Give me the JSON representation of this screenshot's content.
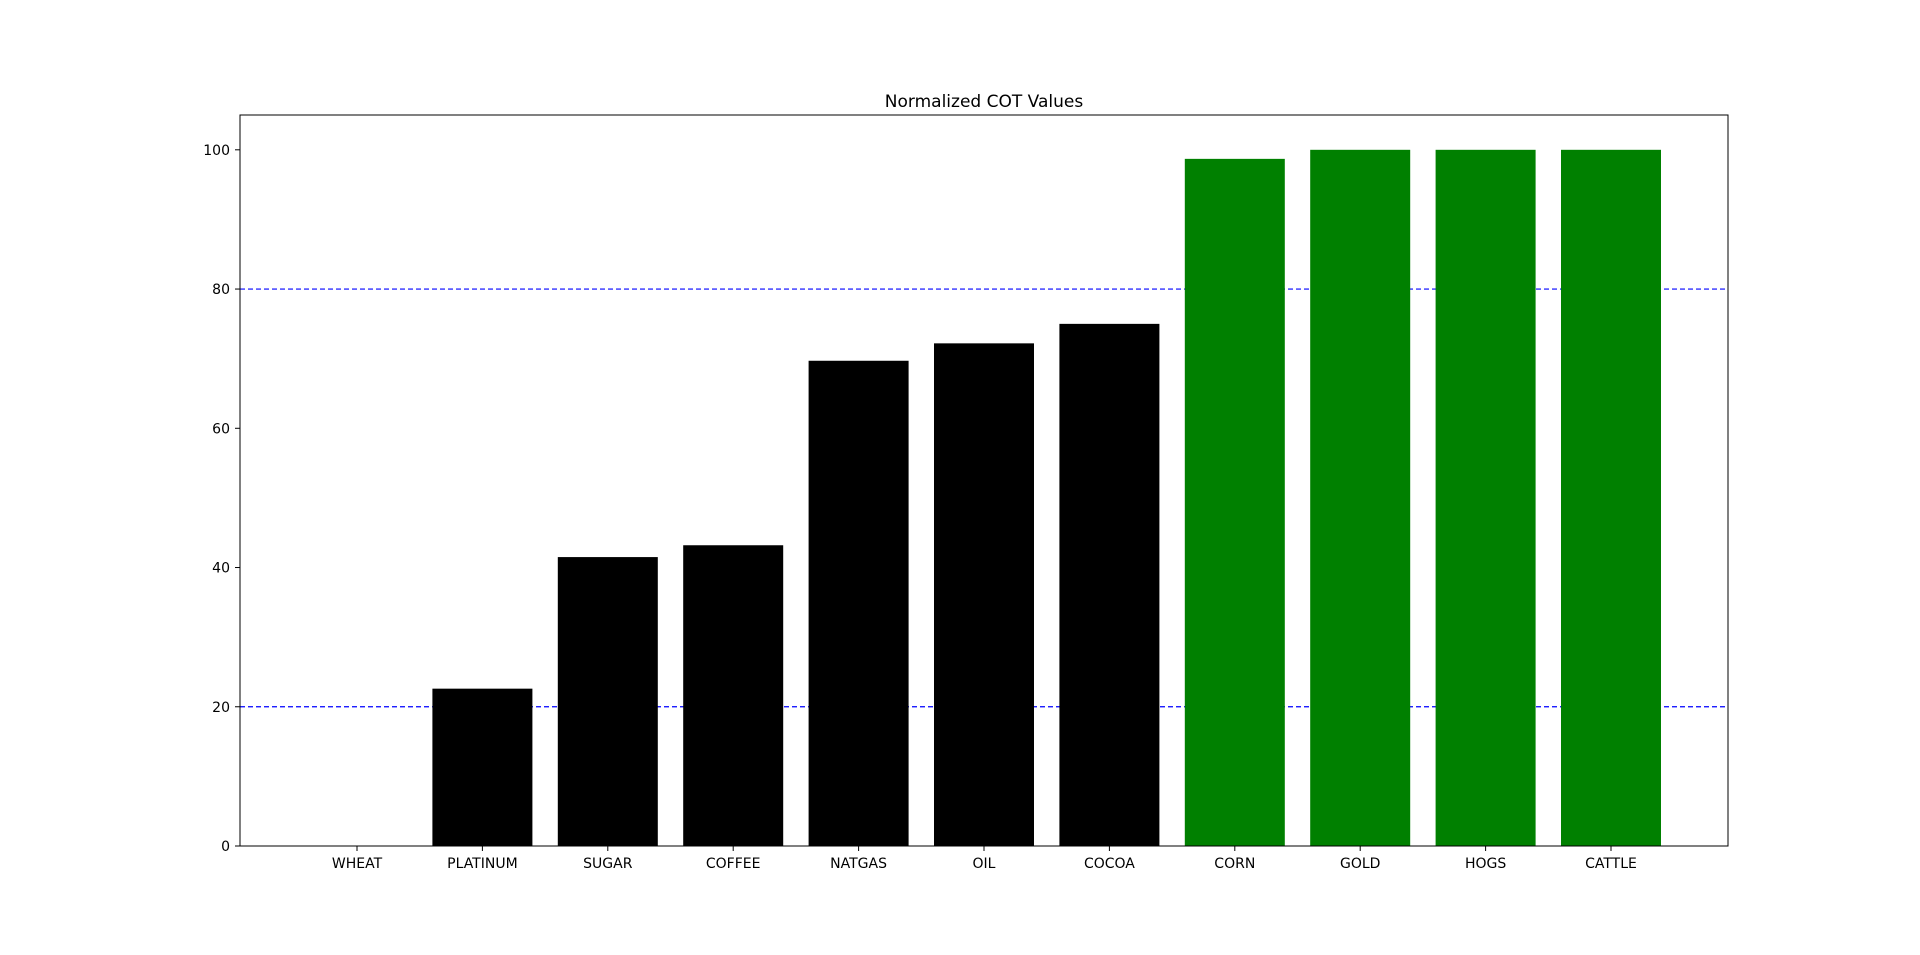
{
  "chart_data": {
    "type": "bar",
    "title": "Normalized COT Values",
    "xlabel": "",
    "ylabel": "",
    "categories": [
      "WHEAT",
      "PLATINUM",
      "SUGAR",
      "COFFEE",
      "NATGAS",
      "OIL",
      "COCOA",
      "CORN",
      "GOLD",
      "HOGS",
      "CATTLE"
    ],
    "values": [
      0,
      22.6,
      41.5,
      43.2,
      69.7,
      72.2,
      75.0,
      98.7,
      100,
      100,
      100
    ],
    "bar_colors": [
      "#000000",
      "#000000",
      "#000000",
      "#000000",
      "#000000",
      "#000000",
      "#000000",
      "#008000",
      "#008000",
      "#008000",
      "#008000"
    ],
    "ylim": [
      0,
      105
    ],
    "yticks": [
      0,
      20,
      40,
      60,
      80,
      100
    ],
    "reference_lines": [
      {
        "y": 20,
        "color": "#0000ff",
        "style": "dashed"
      },
      {
        "y": 80,
        "color": "#0000ff",
        "style": "dashed"
      }
    ],
    "grid": false,
    "legend": "none"
  }
}
